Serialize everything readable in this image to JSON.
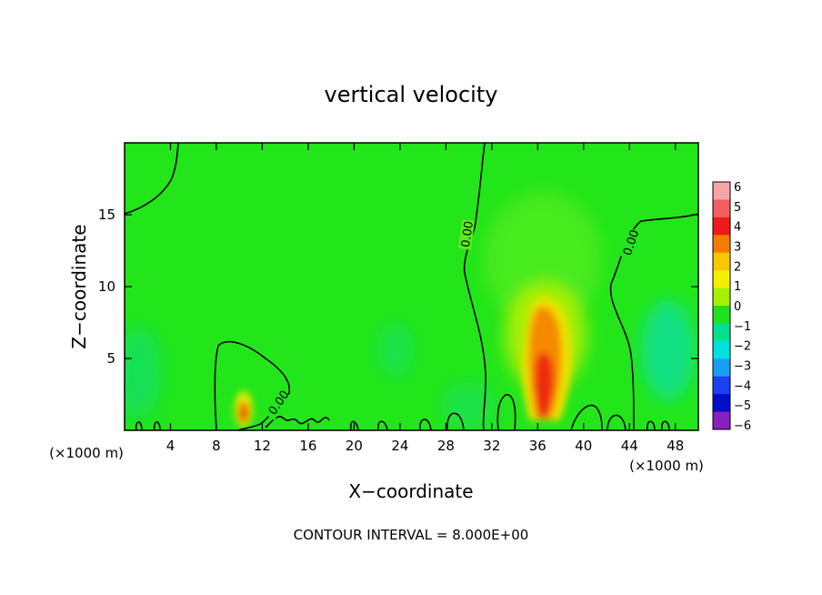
{
  "chart_data": {
    "type": "heatmap",
    "title": "vertical velocity",
    "xlabel": "X−coordinate",
    "ylabel": "Z−coordinate",
    "x_unit_left": "(×1000 m)",
    "x_unit_right": "(×1000 m)",
    "xlim": [
      0,
      50
    ],
    "ylim": [
      0,
      20
    ],
    "xticks": [
      4,
      8,
      12,
      16,
      20,
      24,
      28,
      32,
      36,
      40,
      44,
      48
    ],
    "yticks": [
      5,
      10,
      15
    ],
    "xtick_labels": [
      "4",
      "8",
      "12",
      "16",
      "20",
      "24",
      "28",
      "32",
      "36",
      "40",
      "44",
      "48"
    ],
    "ytick_labels": [
      "5",
      "10",
      "15"
    ],
    "colorbar": {
      "labels": [
        "6",
        "5",
        "4",
        "3",
        "2",
        "1",
        "0",
        "−1",
        "−2",
        "−3",
        "−4",
        "−5",
        "−6"
      ],
      "levels": [
        6,
        5,
        4,
        3,
        2,
        1,
        0,
        -1,
        -2,
        -3,
        -4,
        -5,
        -6
      ],
      "colors": [
        "#f4a6a6",
        "#f06060",
        "#ee1a1a",
        "#f57a00",
        "#f5c800",
        "#f0f000",
        "#a6f000",
        "#20e020",
        "#00e090",
        "#00e0e0",
        "#18a0f0",
        "#1a40f0",
        "#0010c8",
        "#8820c0"
      ]
    },
    "contour_labels": [
      "0.00",
      "0.00",
      "0.00"
    ],
    "footer": "CONTOUR INTERVAL = 8.000E+00",
    "features": [
      {
        "kind": "updraft",
        "x": 36,
        "z": 3.5,
        "w_max": 4.5
      },
      {
        "kind": "updraft",
        "x": 10.5,
        "z": 1.3,
        "w_max": 3.5
      },
      {
        "kind": "downdraft",
        "x": 47,
        "z": 5,
        "w_min": -2
      },
      {
        "kind": "downdraft",
        "x": 1.5,
        "z": 4,
        "w_min": -1.5
      }
    ]
  }
}
